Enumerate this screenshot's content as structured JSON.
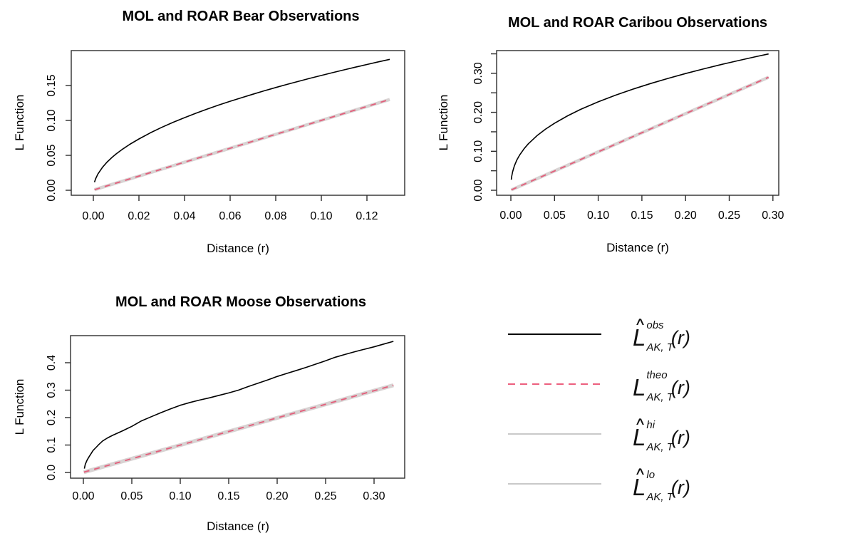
{
  "meta": {
    "background": "#ffffff"
  },
  "colors": {
    "observed": "#000000",
    "theoretical": "#e2607c",
    "envelope_band": "#d8d3d3",
    "envelope_legend": "#c9c9c9",
    "box_stroke": "#2d2d2d",
    "text": "#000000"
  },
  "chart_data": [
    {
      "id": "bear",
      "type": "line",
      "title": "MOL and ROAR Bear Observations",
      "xlabel": "Distance (r)",
      "ylabel": "L Function",
      "xlim": [
        -0.0097,
        0.1366
      ],
      "ylim": [
        -0.007,
        0.2
      ],
      "grid": false,
      "xticks": {
        "values": [
          0.0,
          0.02,
          0.04,
          0.06,
          0.08,
          0.1,
          0.12
        ],
        "labels": [
          "0.00",
          "0.02",
          "0.04",
          "0.06",
          "0.08",
          "0.10",
          "0.12"
        ]
      },
      "yticks": {
        "values": [
          0.0,
          0.05,
          0.1,
          0.15
        ],
        "labels": [
          "0.00",
          "0.05",
          "0.10",
          "0.15"
        ]
      },
      "yticks_minor": [],
      "series": [
        {
          "name": "L_obs",
          "role": "observed",
          "points": [
            [
              0.0005,
              0.0116
            ],
            [
              0.001,
              0.0164
            ],
            [
              0.002,
              0.0233
            ],
            [
              0.004,
              0.0329
            ],
            [
              0.006,
              0.0403
            ],
            [
              0.008,
              0.0465
            ],
            [
              0.01,
              0.052
            ],
            [
              0.013,
              0.0593
            ],
            [
              0.016,
              0.0658
            ],
            [
              0.02,
              0.0735
            ],
            [
              0.025,
              0.0822
            ],
            [
              0.03,
              0.0901
            ],
            [
              0.035,
              0.0973
            ],
            [
              0.04,
              0.104
            ],
            [
              0.045,
              0.1103
            ],
            [
              0.05,
              0.1163
            ],
            [
              0.055,
              0.122
            ],
            [
              0.06,
              0.1274
            ],
            [
              0.065,
              0.1326
            ],
            [
              0.07,
              0.1376
            ],
            [
              0.075,
              0.1424
            ],
            [
              0.08,
              0.1471
            ],
            [
              0.085,
              0.1516
            ],
            [
              0.09,
              0.156
            ],
            [
              0.095,
              0.1603
            ],
            [
              0.1,
              0.1644
            ],
            [
              0.105,
              0.1685
            ],
            [
              0.11,
              0.1724
            ],
            [
              0.115,
              0.1763
            ],
            [
              0.12,
              0.1801
            ],
            [
              0.125,
              0.1839
            ],
            [
              0.13,
              0.1875
            ]
          ]
        },
        {
          "name": "L_theo",
          "role": "theoretical",
          "points": [
            [
              0.0005,
              0.0008
            ],
            [
              0.13,
              0.13
            ]
          ]
        }
      ]
    },
    {
      "id": "caribou",
      "type": "line",
      "title": "MOL and ROAR Caribou Observations",
      "xlabel": "Distance (r)",
      "ylabel": "L Function",
      "xlim": [
        -0.016,
        0.307
      ],
      "ylim": [
        -0.013,
        0.358
      ],
      "grid": false,
      "xticks": {
        "values": [
          0.0,
          0.05,
          0.1,
          0.15,
          0.2,
          0.25,
          0.3
        ],
        "labels": [
          "0.00",
          "0.05",
          "0.10",
          "0.15",
          "0.20",
          "0.25",
          "0.30"
        ]
      },
      "yticks": {
        "values": [
          0.0,
          0.1,
          0.2,
          0.3
        ],
        "labels": [
          "0.00",
          "0.10",
          "0.20",
          "0.30"
        ]
      },
      "yticks_minor": [
        0.05,
        0.15,
        0.25,
        0.35
      ],
      "series": [
        {
          "name": "L_obs",
          "role": "observed",
          "points": [
            [
              0.0005,
              0.0273
            ],
            [
              0.001,
              0.0359
            ],
            [
              0.002,
              0.0475
            ],
            [
              0.004,
              0.0626
            ],
            [
              0.007,
              0.0784
            ],
            [
              0.01,
              0.0903
            ],
            [
              0.015,
              0.1062
            ],
            [
              0.02,
              0.1192
            ],
            [
              0.03,
              0.1402
            ],
            [
              0.04,
              0.1573
            ],
            [
              0.05,
              0.172
            ],
            [
              0.065,
              0.191
            ],
            [
              0.08,
              0.2076
            ],
            [
              0.1,
              0.2269
            ],
            [
              0.12,
              0.2441
            ],
            [
              0.14,
              0.2596
            ],
            [
              0.16,
              0.2739
            ],
            [
              0.18,
              0.2871
            ],
            [
              0.2,
              0.2994
            ],
            [
              0.22,
              0.311
            ],
            [
              0.24,
              0.3221
            ],
            [
              0.26,
              0.3325
            ],
            [
              0.28,
              0.3426
            ],
            [
              0.295,
              0.3498
            ]
          ]
        },
        {
          "name": "L_theo",
          "role": "theoretical",
          "points": [
            [
              0.0005,
              0.001
            ],
            [
              0.295,
              0.29
            ]
          ]
        }
      ]
    },
    {
      "id": "moose",
      "type": "line",
      "title": "MOL and ROAR Moose Observations",
      "xlabel": "Distance (r)",
      "ylabel": "L Function",
      "xlim": [
        -0.0132,
        0.332
      ],
      "ylim": [
        -0.02,
        0.499
      ],
      "grid": false,
      "xticks": {
        "values": [
          0.0,
          0.05,
          0.1,
          0.15,
          0.2,
          0.25,
          0.3
        ],
        "labels": [
          "0.00",
          "0.05",
          "0.10",
          "0.15",
          "0.20",
          "0.25",
          "0.30"
        ]
      },
      "yticks": {
        "values": [
          0.0,
          0.1,
          0.2,
          0.3,
          0.4
        ],
        "labels": [
          "0.0",
          "0.1",
          "0.2",
          "0.3",
          "0.4"
        ]
      },
      "yticks_minor": [],
      "series": [
        {
          "name": "L_obs",
          "role": "observed",
          "points": [
            [
              0.001,
              0.014
            ],
            [
              0.002,
              0.03
            ],
            [
              0.004,
              0.046
            ],
            [
              0.006,
              0.058
            ],
            [
              0.008,
              0.069
            ],
            [
              0.01,
              0.08
            ],
            [
              0.013,
              0.091
            ],
            [
              0.016,
              0.102
            ],
            [
              0.02,
              0.115
            ],
            [
              0.025,
              0.126
            ],
            [
              0.03,
              0.135
            ],
            [
              0.04,
              0.151
            ],
            [
              0.05,
              0.168
            ],
            [
              0.06,
              0.188
            ],
            [
              0.07,
              0.203
            ],
            [
              0.08,
              0.218
            ],
            [
              0.09,
              0.232
            ],
            [
              0.1,
              0.245
            ],
            [
              0.11,
              0.255
            ],
            [
              0.12,
              0.264
            ],
            [
              0.13,
              0.272
            ],
            [
              0.14,
              0.281
            ],
            [
              0.15,
              0.29
            ],
            [
              0.16,
              0.3
            ],
            [
              0.17,
              0.313
            ],
            [
              0.18,
              0.325
            ],
            [
              0.19,
              0.337
            ],
            [
              0.2,
              0.35
            ],
            [
              0.21,
              0.361
            ],
            [
              0.22,
              0.372
            ],
            [
              0.23,
              0.383
            ],
            [
              0.24,
              0.395
            ],
            [
              0.25,
              0.407
            ],
            [
              0.26,
              0.42
            ],
            [
              0.27,
              0.43
            ],
            [
              0.28,
              0.44
            ],
            [
              0.29,
              0.449
            ],
            [
              0.3,
              0.458
            ],
            [
              0.31,
              0.468
            ],
            [
              0.32,
              0.478
            ]
          ]
        },
        {
          "name": "L_theo",
          "role": "theoretical",
          "points": [
            [
              0.0005,
              0.001
            ],
            [
              0.32,
              0.318
            ]
          ]
        }
      ]
    }
  ],
  "legend": {
    "entries": [
      {
        "name": "observed-line",
        "hat": true,
        "base": "L",
        "sup": "obs",
        "sub": "AK, T",
        "arg": "(r)",
        "line_style": "solid",
        "line_color": "#000000",
        "line_width": 2.2
      },
      {
        "name": "theoretical-line",
        "hat": false,
        "base": "L",
        "sup": "theo",
        "sub": "AK, T",
        "arg": "(r)",
        "line_style": "dashed",
        "line_color": "#ec5f7e",
        "line_width": 2.4
      },
      {
        "name": "hi-envelope-line",
        "hat": true,
        "base": "L",
        "sup": "hi",
        "sub": "AK, T",
        "arg": "(r)",
        "line_style": "solid",
        "line_color": "#c9c9c9",
        "line_width": 1.6
      },
      {
        "name": "lo-envelope-line",
        "hat": true,
        "base": "L",
        "sup": "lo",
        "sub": "AK, T",
        "arg": "(r)",
        "line_style": "solid",
        "line_color": "#c9c9c9",
        "line_width": 1.6
      }
    ]
  }
}
